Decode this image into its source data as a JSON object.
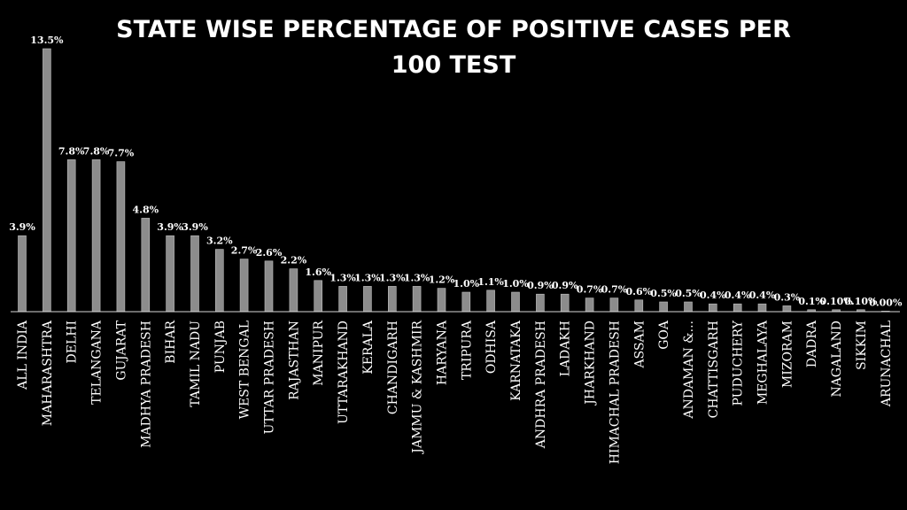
{
  "chart_data": {
    "type": "bar",
    "title": "STATE WISE PERCENTAGE OF POSITIVE CASES PER 100 TEST",
    "xlabel": "",
    "ylabel": "",
    "ylim": [
      0,
      15
    ],
    "grid": false,
    "legend": "none",
    "bar_color": "#8c8c8c",
    "background": "#000000",
    "categories": [
      "ALL INDIA",
      "MAHARASHTRA",
      "DELHI",
      "TELANGANA",
      "GUJARAT",
      "MADHYA PRADESH",
      "BIHAR",
      "TAMIL NADU",
      "PUNJAB",
      "WEST BENGAL",
      "UTTAR PRADESH",
      "RAJASTHAN",
      "MANIPUR",
      "UTTARAKHAND",
      "KERALA",
      "CHANDIGARH",
      "JAMMU & KASHMIR",
      "HARYANA",
      "TRIPURA",
      "ODHISA",
      "KARNATAKA",
      "ANDHRA PRADESH",
      "LADAKH",
      "JHARKHAND",
      "HIMACHAL PRADESH",
      "ASSAM",
      "GOA",
      "ANDAMAN &...",
      "CHATTISGARH",
      "PUDUCHERY",
      "MEGHALAYA",
      "MIZORAM",
      "DADRA",
      "NAGALAND",
      "SIKKIM",
      "ARUNACHAL"
    ],
    "values": [
      3.9,
      13.5,
      7.8,
      7.8,
      7.7,
      4.8,
      3.9,
      3.9,
      3.2,
      2.7,
      2.6,
      2.2,
      1.6,
      1.3,
      1.3,
      1.3,
      1.3,
      1.2,
      1.0,
      1.1,
      1.0,
      0.9,
      0.9,
      0.7,
      0.7,
      0.6,
      0.5,
      0.5,
      0.4,
      0.4,
      0.4,
      0.3,
      0.1,
      0.1,
      0.1,
      0.0
    ],
    "value_labels": [
      "3.9%",
      "13.5%",
      "7.8%",
      "7.8%",
      "7.7%",
      "4.8%",
      "3.9%",
      "3.9%",
      "3.2%",
      "2.7%",
      "2.6%",
      "2.2%",
      "1.6%",
      "1.3%",
      "1.3%",
      "1.3%",
      "1.3%",
      "1.2%",
      "1.0%",
      "1.1%",
      "1.0%",
      "0.9%",
      "0.9%",
      "0.7%",
      "0.7%",
      "0.6%",
      "0.5%",
      "0.5%",
      "0.4%",
      "0.4%",
      "0.4%",
      "0.3%",
      "0.1%",
      "0.10%",
      "0.10%",
      "0.00%"
    ]
  }
}
